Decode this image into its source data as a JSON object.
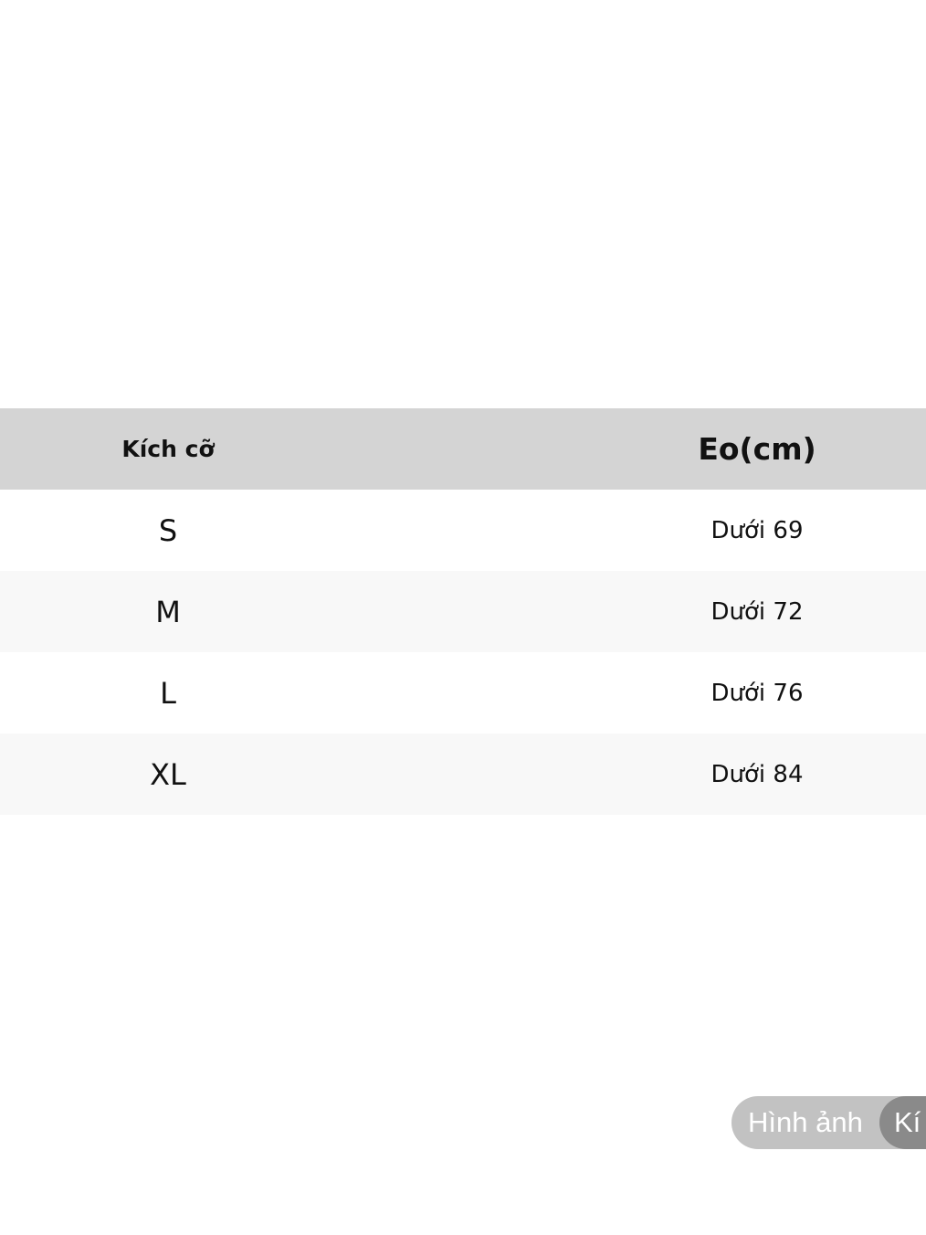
{
  "table": {
    "headers": [
      "Kích cỡ",
      "Eo(cm)"
    ],
    "rows": [
      {
        "size": "S",
        "waist": "Dưới 69"
      },
      {
        "size": "M",
        "waist": "Dưới 72"
      },
      {
        "size": "L",
        "waist": "Dưới 76"
      },
      {
        "size": "XL",
        "waist": "Dưới 84"
      }
    ]
  },
  "tabs": {
    "images": "Hình ảnh",
    "size": "Kí"
  }
}
